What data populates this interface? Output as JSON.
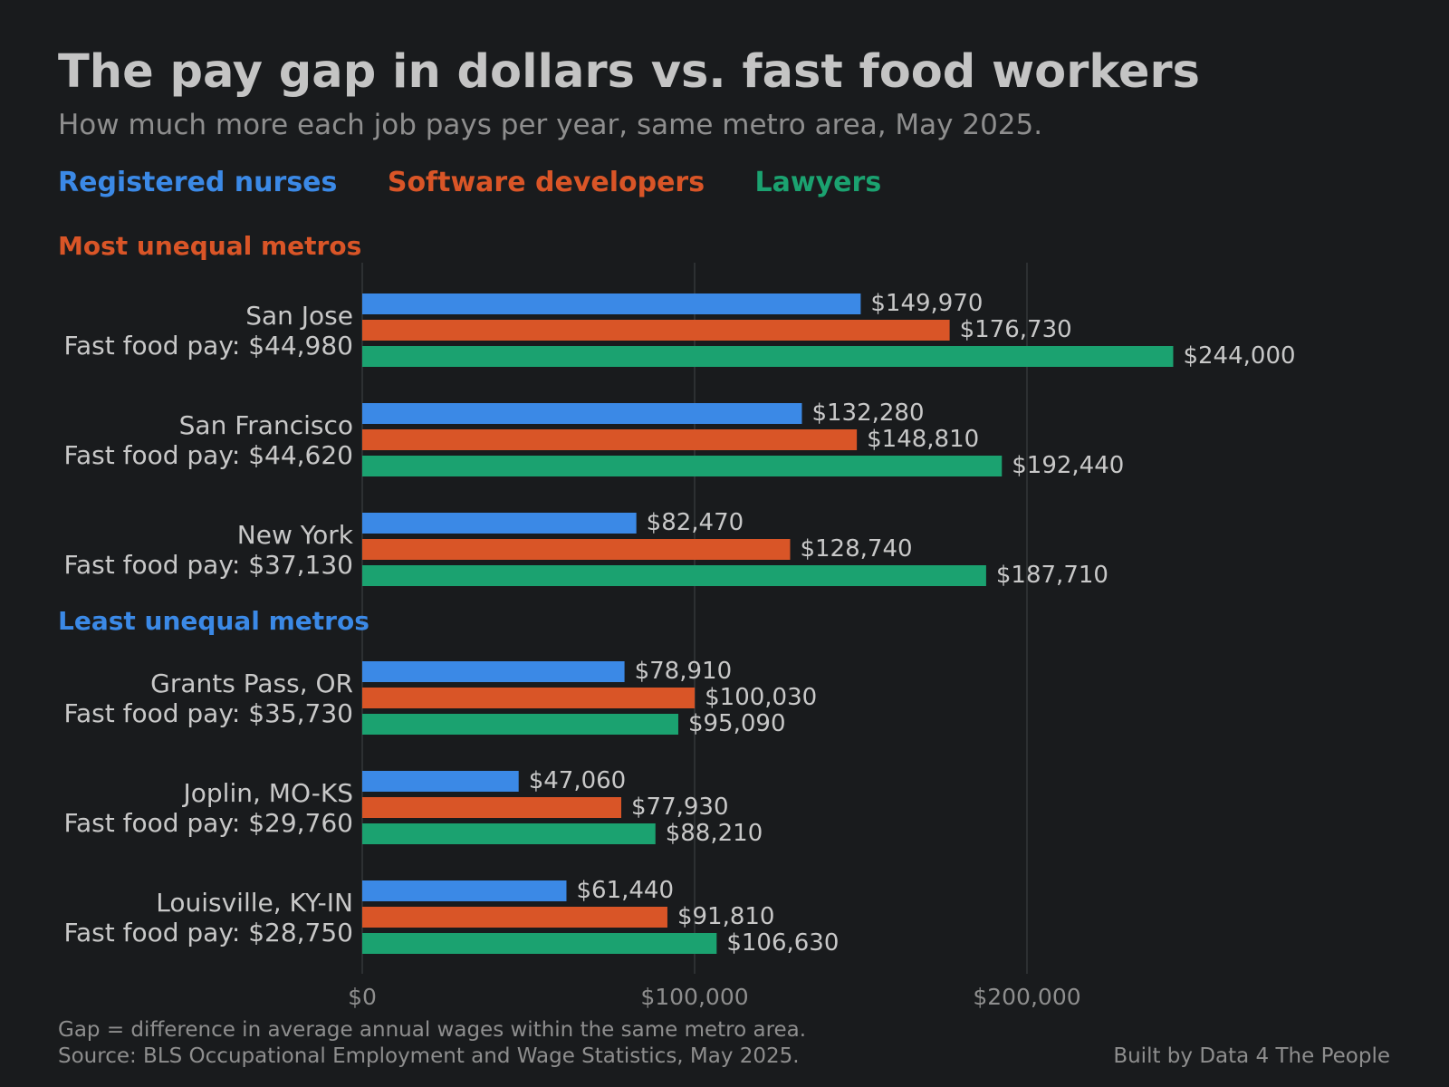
{
  "title": "The pay gap in dollars vs. fast food workers",
  "subtitle": "How much more each job pays per year, same metro area, May 2025.",
  "colors": {
    "background": "#191b1d",
    "nurses": "#3b89e6",
    "software": "#d95527",
    "lawyers": "#1ba270",
    "grid": "#34373a",
    "text": "#c8c8c8",
    "muted": "#8e8e8e"
  },
  "chart_data": {
    "type": "bar",
    "orientation": "horizontal",
    "value_format": "$#,###",
    "xlim": [
      0,
      300000
    ],
    "x_ticks": [
      0,
      100000,
      200000
    ],
    "x_tick_labels": [
      "$0",
      "$100,000",
      "$200,000"
    ],
    "grid": true,
    "legend": "top",
    "series_names": [
      "Registered nurses",
      "Software developers",
      "Lawyers"
    ],
    "groups": [
      {
        "label": "Most unequal metros",
        "color": "#d95527",
        "metros": [
          {
            "name": "San Jose",
            "fast_food_label": "Fast food pay: $44,980",
            "values": [
              149970,
              176730,
              244000
            ]
          },
          {
            "name": "San Francisco",
            "fast_food_label": "Fast food pay: $44,620",
            "values": [
              132280,
              148810,
              192440
            ]
          },
          {
            "name": "New York",
            "fast_food_label": "Fast food pay: $37,130",
            "values": [
              82470,
              128740,
              187710
            ]
          }
        ]
      },
      {
        "label": "Least unequal metros",
        "color": "#3b89e6",
        "metros": [
          {
            "name": "Grants Pass, OR",
            "fast_food_label": "Fast food pay: $35,730",
            "values": [
              78910,
              100030,
              95090
            ]
          },
          {
            "name": "Joplin, MO-KS",
            "fast_food_label": "Fast food pay: $29,760",
            "values": [
              47060,
              77930,
              88210
            ]
          },
          {
            "name": "Louisville, KY-IN",
            "fast_food_label": "Fast food pay: $28,750",
            "values": [
              61440,
              91810,
              106630
            ]
          }
        ]
      }
    ]
  },
  "footer": {
    "note": "Gap = difference in average annual wages within the same metro area.",
    "source": "Source: BLS Occupational Employment and Wage Statistics, May 2025.",
    "credit": "Built by Data 4 The People"
  }
}
